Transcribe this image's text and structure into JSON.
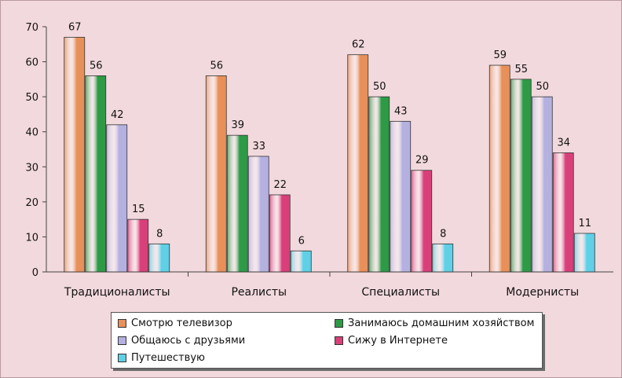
{
  "chart_data": {
    "type": "bar",
    "categories": [
      "Традиционалисты",
      "Реалисты",
      "Специалисты",
      "Модернисты"
    ],
    "series": [
      {
        "name": "Смотрю телевизор",
        "values": [
          67,
          56,
          62,
          59
        ],
        "color": "#e8905a"
      },
      {
        "name": "Занимаюсь домашним хозяйством",
        "values": [
          56,
          39,
          50,
          55
        ],
        "color": "#2e9a46"
      },
      {
        "name": "Общаюсь с друзьями",
        "values": [
          42,
          33,
          43,
          50
        ],
        "color": "#b4b0e0"
      },
      {
        "name": "Сижу в Интернете",
        "values": [
          15,
          22,
          29,
          34
        ],
        "color": "#d9407a"
      },
      {
        "name": "Путешествую",
        "values": [
          8,
          6,
          8,
          11
        ],
        "color": "#5fd0e6"
      }
    ],
    "yticks": [
      "0",
      "10",
      "20",
      "30",
      "40",
      "50",
      "60",
      "70"
    ],
    "ylim": [
      0,
      70
    ],
    "grid": false,
    "legend_position": "bottom"
  }
}
